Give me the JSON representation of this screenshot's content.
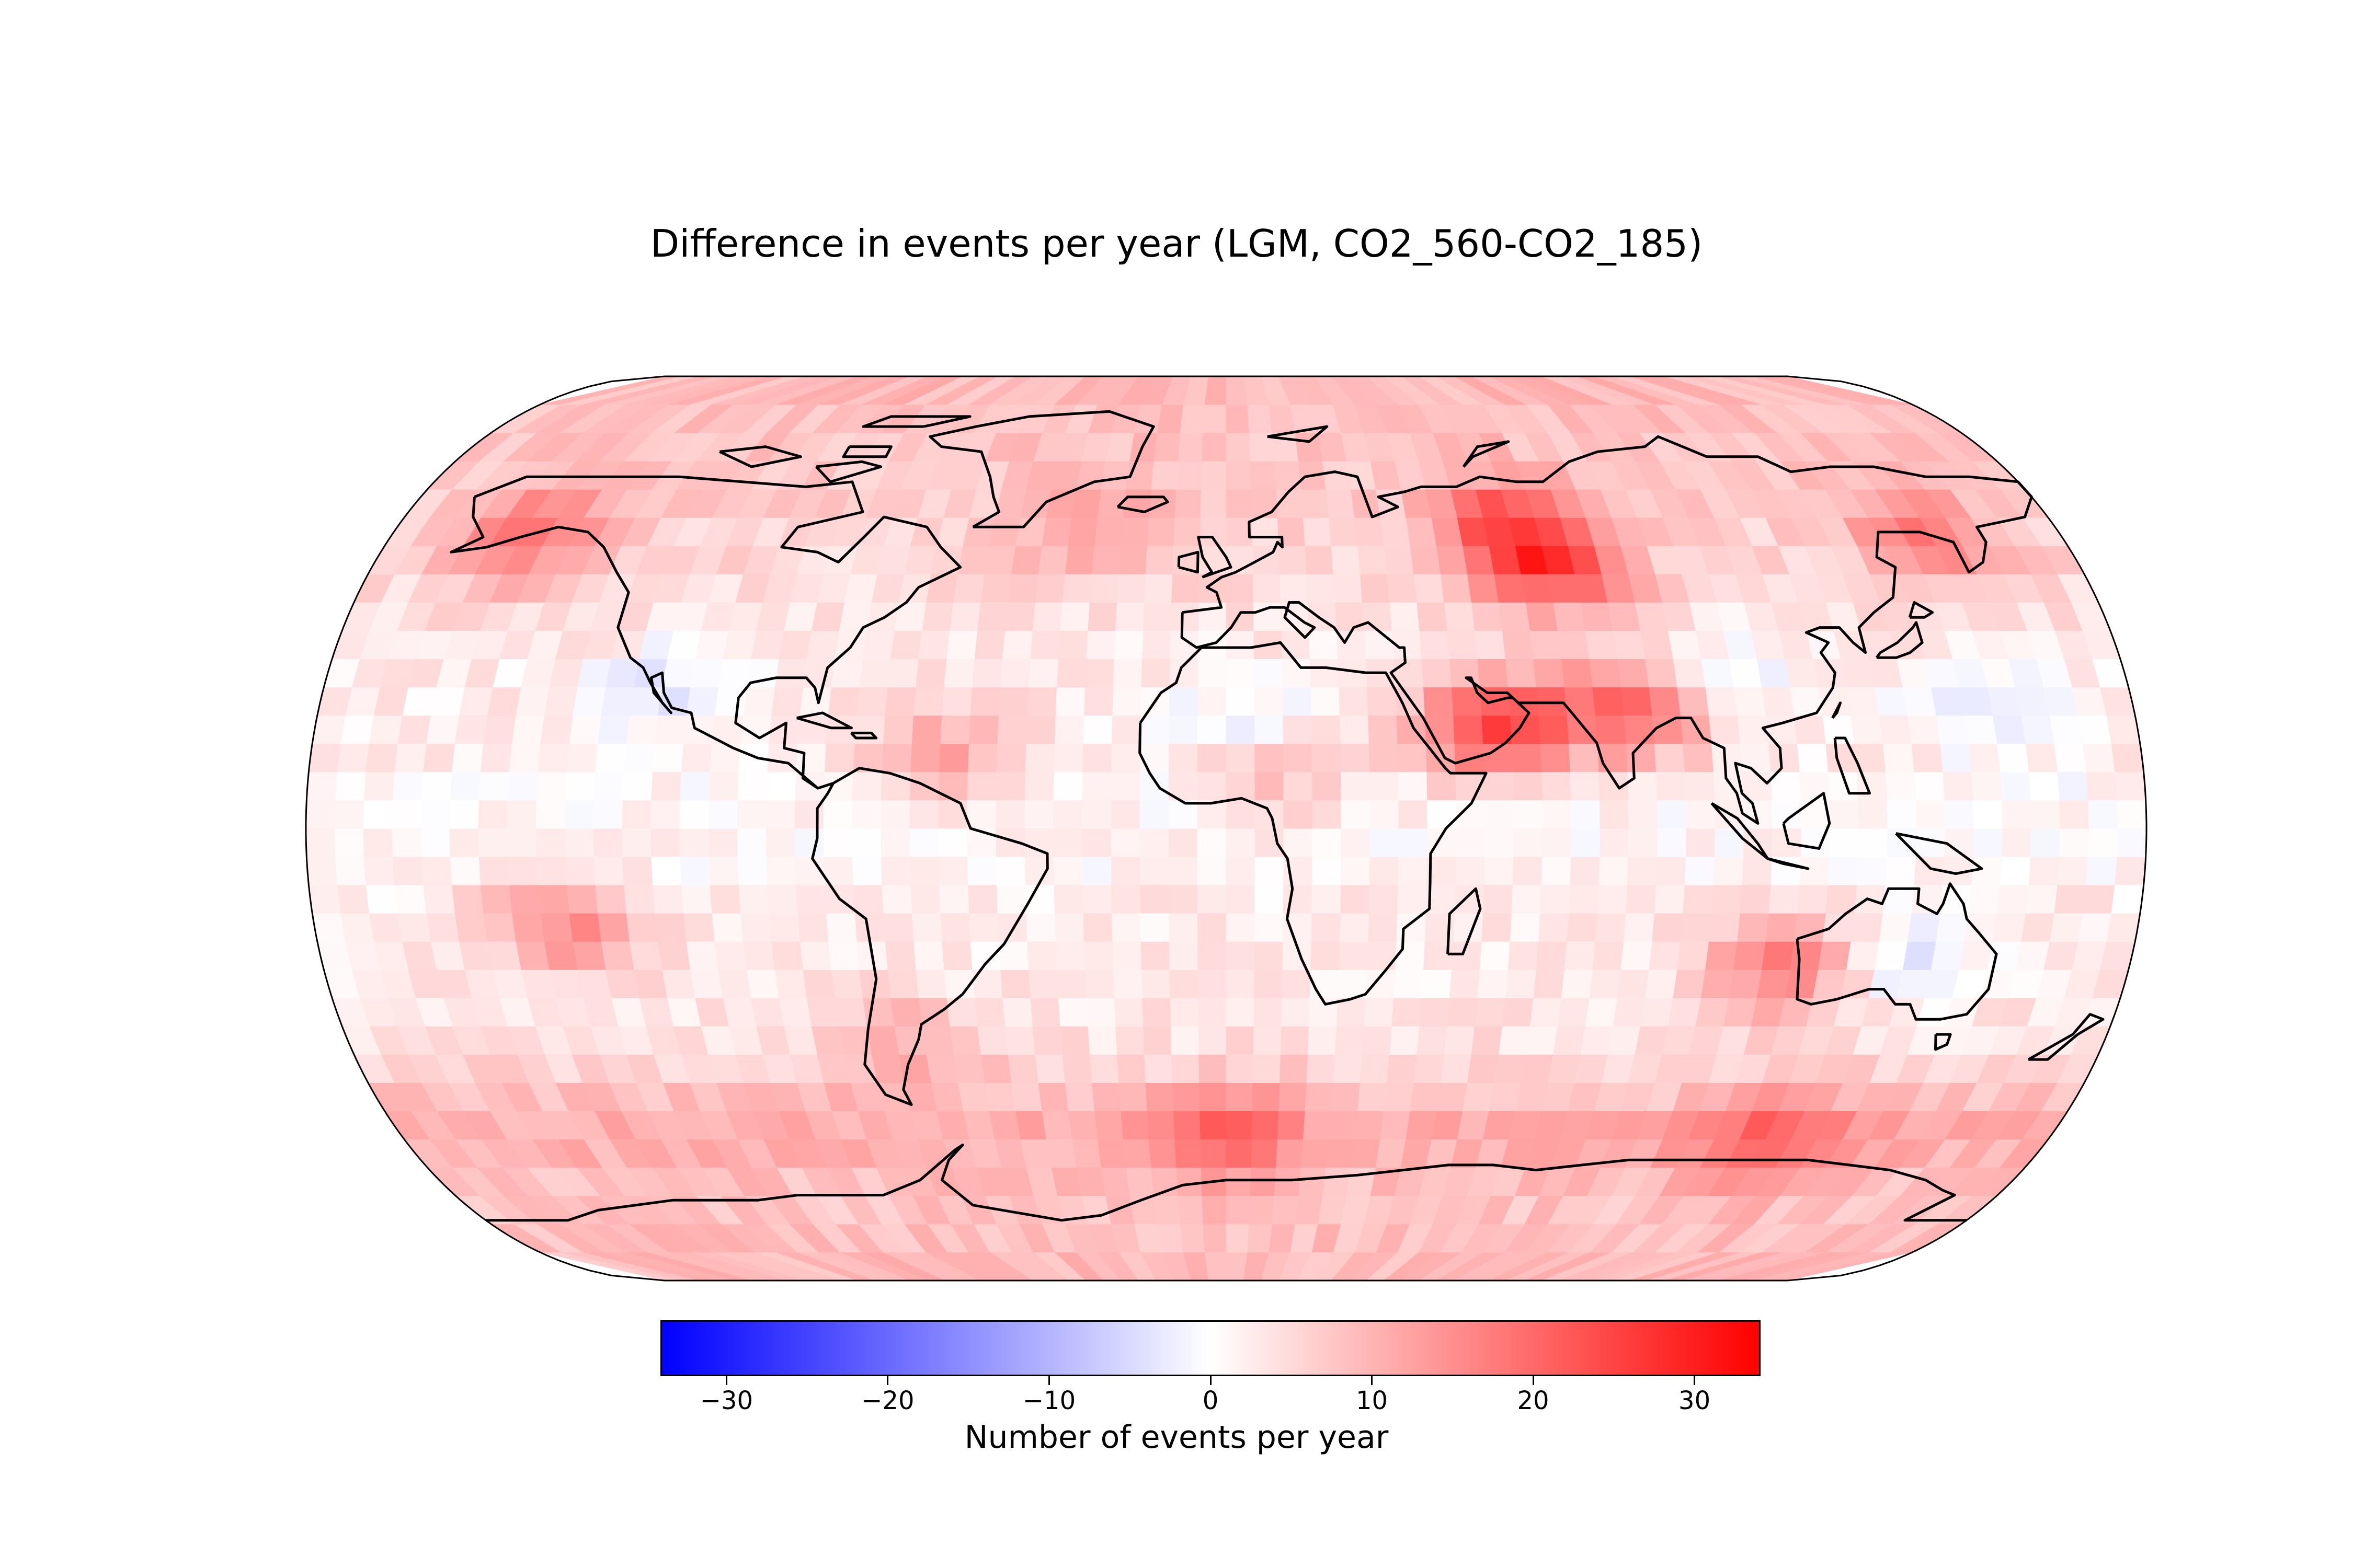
{
  "figure": {
    "title": "Difference in events per year (LGM, CO2_560-CO2_185)"
  },
  "map": {
    "projection": "Robinson-like (global)",
    "basemap": "coastlines",
    "coastline_color": "#000000",
    "field": "difference in events per year",
    "grid_lon_count": 64,
    "grid_lat_count": 32,
    "hotspots": [
      {
        "name": "North Pacific / Alaska",
        "lon": -150,
        "lat": 58,
        "value": 16
      },
      {
        "name": "North Atlantic",
        "lon": -30,
        "lat": 60,
        "value": 10
      },
      {
        "name": "Siberia",
        "lon": 60,
        "lat": 60,
        "value": 18
      },
      {
        "name": "West Siberia / Kazakhstan",
        "lon": 70,
        "lat": 52,
        "value": 20
      },
      {
        "name": "Northern Pacific (Kamchatka)",
        "lon": 150,
        "lat": 58,
        "value": 14
      },
      {
        "name": "Arabian Peninsula",
        "lon": 52,
        "lat": 20,
        "value": 24
      },
      {
        "name": "India",
        "lon": 80,
        "lat": 24,
        "value": 22
      },
      {
        "name": "Caribbean / tropical Atlantic",
        "lon": -55,
        "lat": 15,
        "value": 12
      },
      {
        "name": "Sahel",
        "lon": 10,
        "lat": 10,
        "value": 10
      },
      {
        "name": "South Pacific",
        "lon": -130,
        "lat": -20,
        "value": 16
      },
      {
        "name": "Southeast Indian Ocean / Western Australia",
        "lon": 110,
        "lat": -27,
        "value": 18
      },
      {
        "name": "Patagonia",
        "lon": -65,
        "lat": -42,
        "value": 10
      },
      {
        "name": "Southern Ocean",
        "lon": 0,
        "lat": -60,
        "value": 13
      },
      {
        "name": "Southern Ocean (Antarctic margin)",
        "lon": 120,
        "lat": -62,
        "value": 14
      }
    ],
    "coldspots": [
      {
        "name": "Sahara",
        "lon": 5,
        "lat": 22,
        "value": -2
      },
      {
        "name": "Baja California",
        "lon": -112,
        "lat": 28,
        "value": -3
      },
      {
        "name": "Central Asia / Tibet",
        "lon": 100,
        "lat": 32,
        "value": -2
      },
      {
        "name": "North Pacific subtropics",
        "lon": 150,
        "lat": 25,
        "value": -3
      },
      {
        "name": "Central Australia",
        "lon": 135,
        "lat": -25,
        "value": -3
      }
    ]
  },
  "colorbar": {
    "label": "Number of events per year",
    "cmap": "bwr",
    "vmin": -34,
    "vmax": 34,
    "ticks": [
      -30,
      -20,
      -10,
      0,
      10,
      20,
      30
    ],
    "tick_labels": [
      "−30",
      "−20",
      "−10",
      "0",
      "10",
      "20",
      "30"
    ],
    "low_color": "#0000ff",
    "mid_color": "#ffffff",
    "high_color": "#ff0000"
  }
}
